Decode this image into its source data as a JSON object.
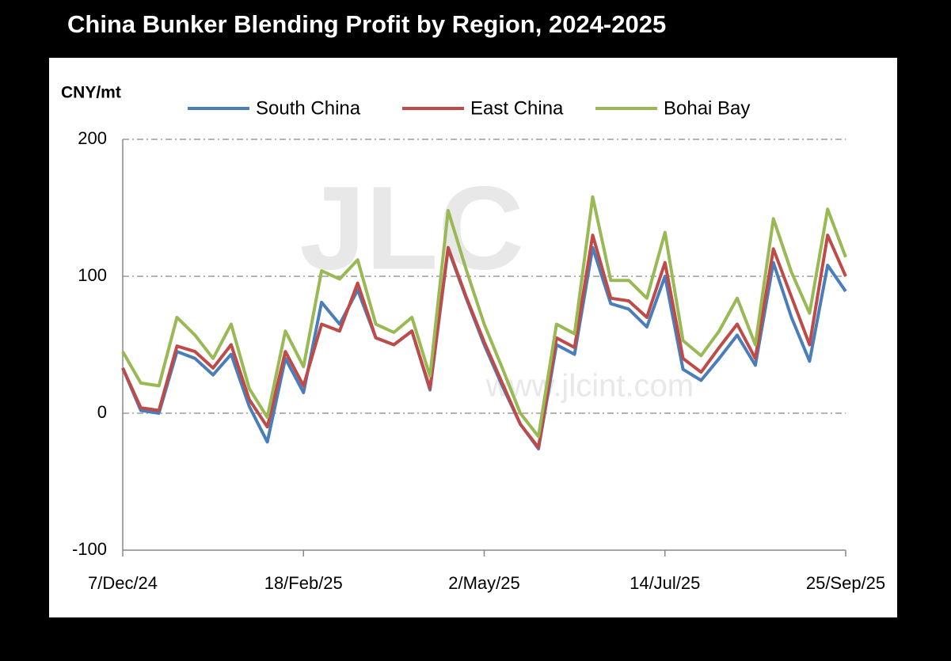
{
  "chart_data": {
    "type": "line",
    "title": "China Bunker Blending Profit by Region, 2024-2025",
    "y_label": "CNY/mt",
    "watermark": [
      "JLC",
      "www.jlcint.com"
    ],
    "categories": [
      "7/Dec/24",
      null,
      null,
      null,
      null,
      null,
      null,
      null,
      null,
      null,
      "18/Feb/25",
      null,
      null,
      null,
      null,
      null,
      null,
      null,
      null,
      null,
      "2/May/25",
      null,
      null,
      null,
      null,
      null,
      null,
      null,
      null,
      null,
      "14/Jul/25",
      null,
      null,
      null,
      null,
      null,
      null,
      null,
      null,
      null,
      "25/Sep/25"
    ],
    "series": [
      {
        "name": "South China",
        "color": "#4a7ebb",
        "values": [
          33,
          2,
          0,
          45,
          40,
          28,
          43,
          5,
          -21,
          40,
          15,
          81,
          65,
          90,
          55,
          50,
          60,
          17,
          120,
          84,
          50,
          20,
          -8,
          -26,
          50,
          43,
          121,
          80,
          76,
          63,
          100,
          32,
          24,
          40,
          57,
          35,
          110,
          70,
          38,
          108,
          89
        ]
      },
      {
        "name": "East China",
        "color": "#be4b48",
        "values": [
          33,
          4,
          2,
          49,
          45,
          33,
          50,
          10,
          -10,
          45,
          20,
          65,
          60,
          95,
          55,
          50,
          60,
          18,
          121,
          85,
          52,
          22,
          -8,
          -25,
          55,
          48,
          130,
          84,
          82,
          70,
          110,
          40,
          30,
          48,
          65,
          40,
          120,
          85,
          50,
          130,
          100
        ]
      },
      {
        "name": "Bohai Bay",
        "color": "#98b954",
        "values": [
          45,
          22,
          20,
          70,
          57,
          40,
          65,
          18,
          -3,
          60,
          34,
          104,
          98,
          112,
          65,
          59,
          70,
          27,
          148,
          105,
          65,
          33,
          0,
          -17,
          65,
          58,
          158,
          97,
          97,
          84,
          132,
          53,
          42,
          60,
          84,
          50,
          142,
          103,
          73,
          149,
          114
        ]
      }
    ],
    "ylim": [
      -100,
      200
    ],
    "yticks": [
      -100,
      0,
      100,
      200
    ],
    "grid": true,
    "legend": "top"
  }
}
